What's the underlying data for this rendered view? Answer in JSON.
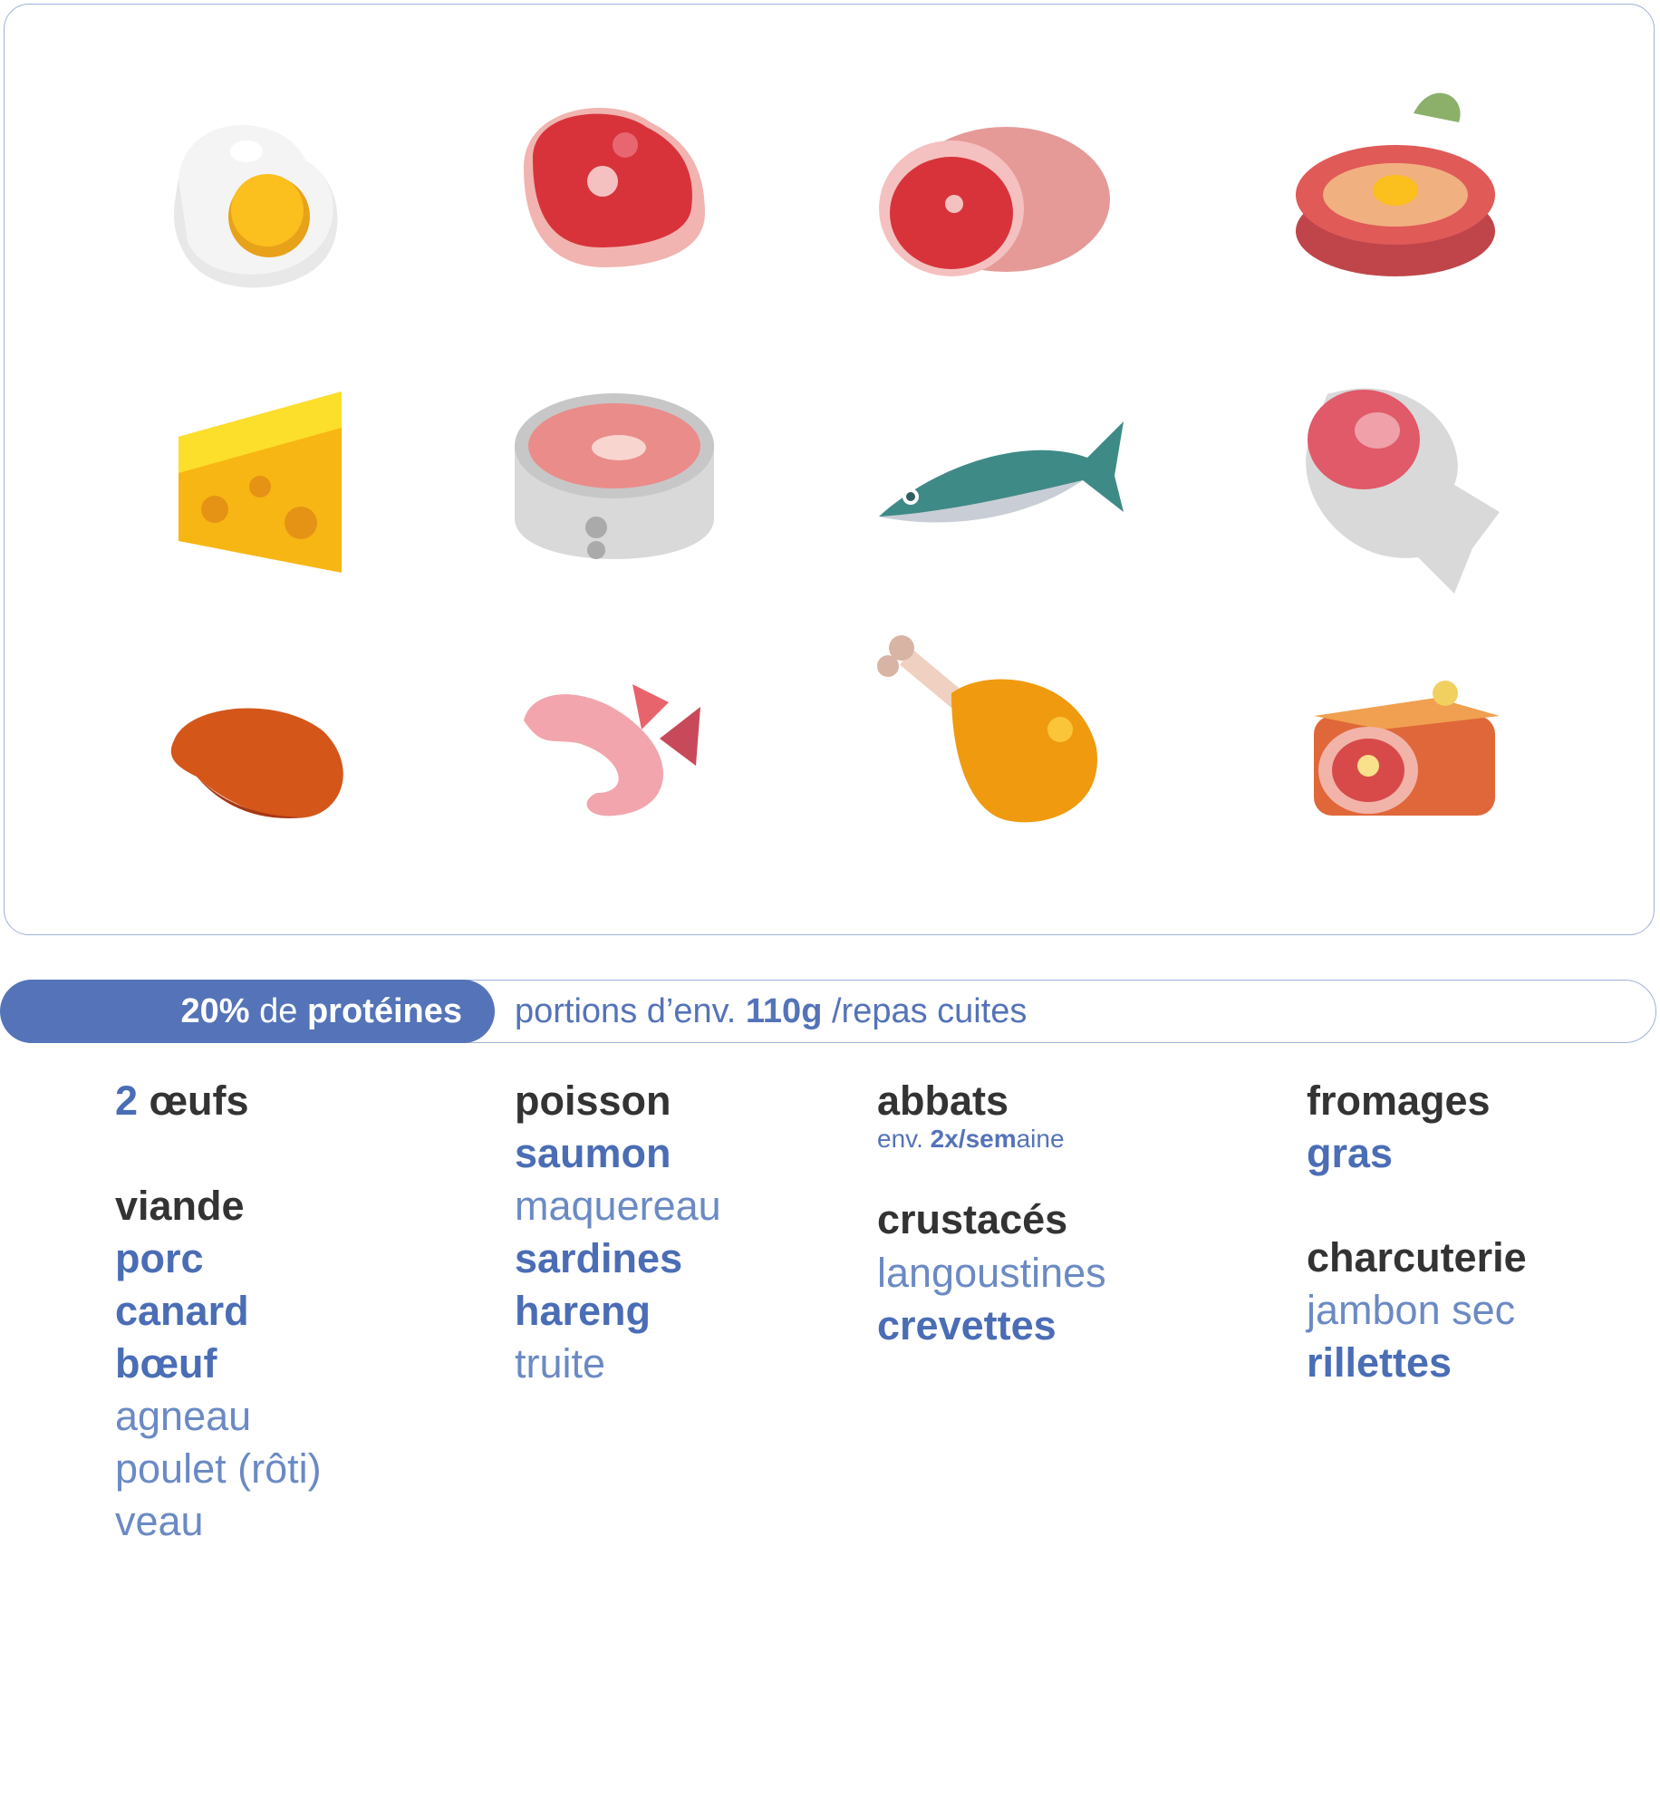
{
  "banner": {
    "label": [
      "20%",
      "de",
      "protéines"
    ],
    "text": [
      "portions d’env.",
      "110g",
      "/repas cuites"
    ]
  },
  "columns": [
    {
      "lead": [
        "2",
        "œufs"
      ],
      "groups": [
        {
          "heading": "viande",
          "items": [
            "porc",
            "canard",
            "bœuf",
            "agneau",
            "poulet (rôti)",
            "veau"
          ]
        }
      ]
    },
    {
      "groups": [
        {
          "heading": "poisson",
          "items": [
            "saumon",
            "maquereau",
            "sardines",
            "hareng",
            "truite"
          ]
        }
      ]
    },
    {
      "groups": [
        {
          "heading": "abbats",
          "note": [
            "env.",
            "2x/sem",
            "aine"
          ]
        },
        {
          "heading": "crustacés",
          "items": [
            "langoustines",
            "crevettes"
          ]
        }
      ]
    },
    {
      "groups": [
        {
          "heading": "fromages",
          "items": [
            "gras"
          ]
        },
        {
          "heading": "charcuterie",
          "items": [
            "jambon sec",
            "rillettes"
          ]
        }
      ]
    }
  ]
}
